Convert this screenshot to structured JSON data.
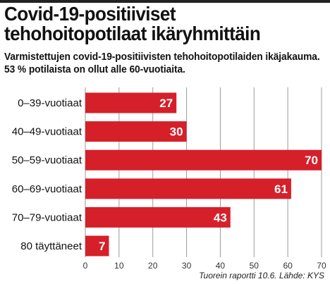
{
  "header": {
    "title_line1": "Covid-19-positiiviset",
    "title_line2": "tehohoitopotilaat ikäryhmittäin",
    "subtitle": "Varmistettujen covid-19-positiivisten tehohoitopotilaiden ikäjakauma. 53 % potilaista on ollut alle 60-vuotiaita."
  },
  "footer": {
    "source": "Tuorein raportti 10.6. Lähde: KYS"
  },
  "colors": {
    "bar": "#d5202a",
    "grid": "#9a9a9a"
  },
  "chart_data": {
    "type": "bar",
    "orientation": "horizontal",
    "categories": [
      "0–39-vuotiaat",
      "40–49-vuotiaat",
      "50–59-vuotiaat",
      "60–69-vuotiaat",
      "70–79-vuotiaat",
      "80 täyttäneet"
    ],
    "values": [
      27,
      30,
      70,
      61,
      43,
      7
    ],
    "xlim": [
      0,
      70
    ],
    "xticks": [
      0,
      10,
      20,
      30,
      40,
      50,
      60,
      70
    ],
    "grid": true,
    "data_labels": true
  }
}
